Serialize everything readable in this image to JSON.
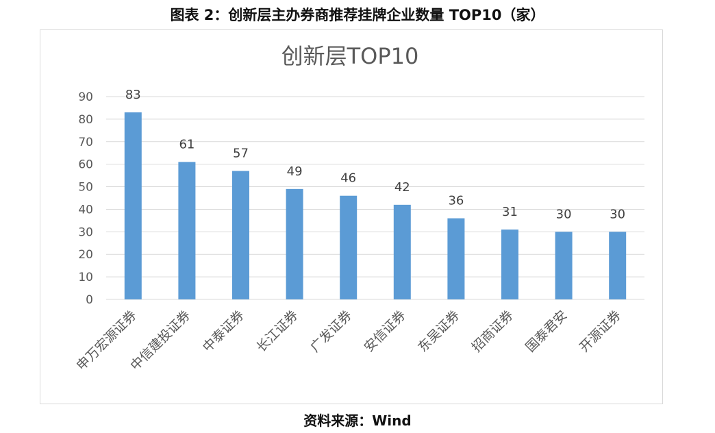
{
  "figure_title": "图表 2：创新层主办券商推荐挂牌企业数量 TOP10（家）",
  "source": "资料来源：Wind",
  "chart_data": {
    "type": "bar",
    "title": "创新层TOP10",
    "xlabel": "",
    "ylabel": "",
    "categories": [
      "申万宏源证券",
      "中信建投证券",
      "中泰证券",
      "长江证券",
      "广发证券",
      "安信证券",
      "东吴证券",
      "招商证券",
      "国泰君安",
      "开源证券"
    ],
    "values": [
      83,
      61,
      57,
      49,
      46,
      42,
      36,
      31,
      30,
      30
    ],
    "ylim": [
      0,
      90
    ],
    "yticks": [
      0,
      10,
      20,
      30,
      40,
      50,
      60,
      70,
      80,
      90
    ],
    "grid": true,
    "legend": "none",
    "bar_color": "#5b9bd5"
  }
}
